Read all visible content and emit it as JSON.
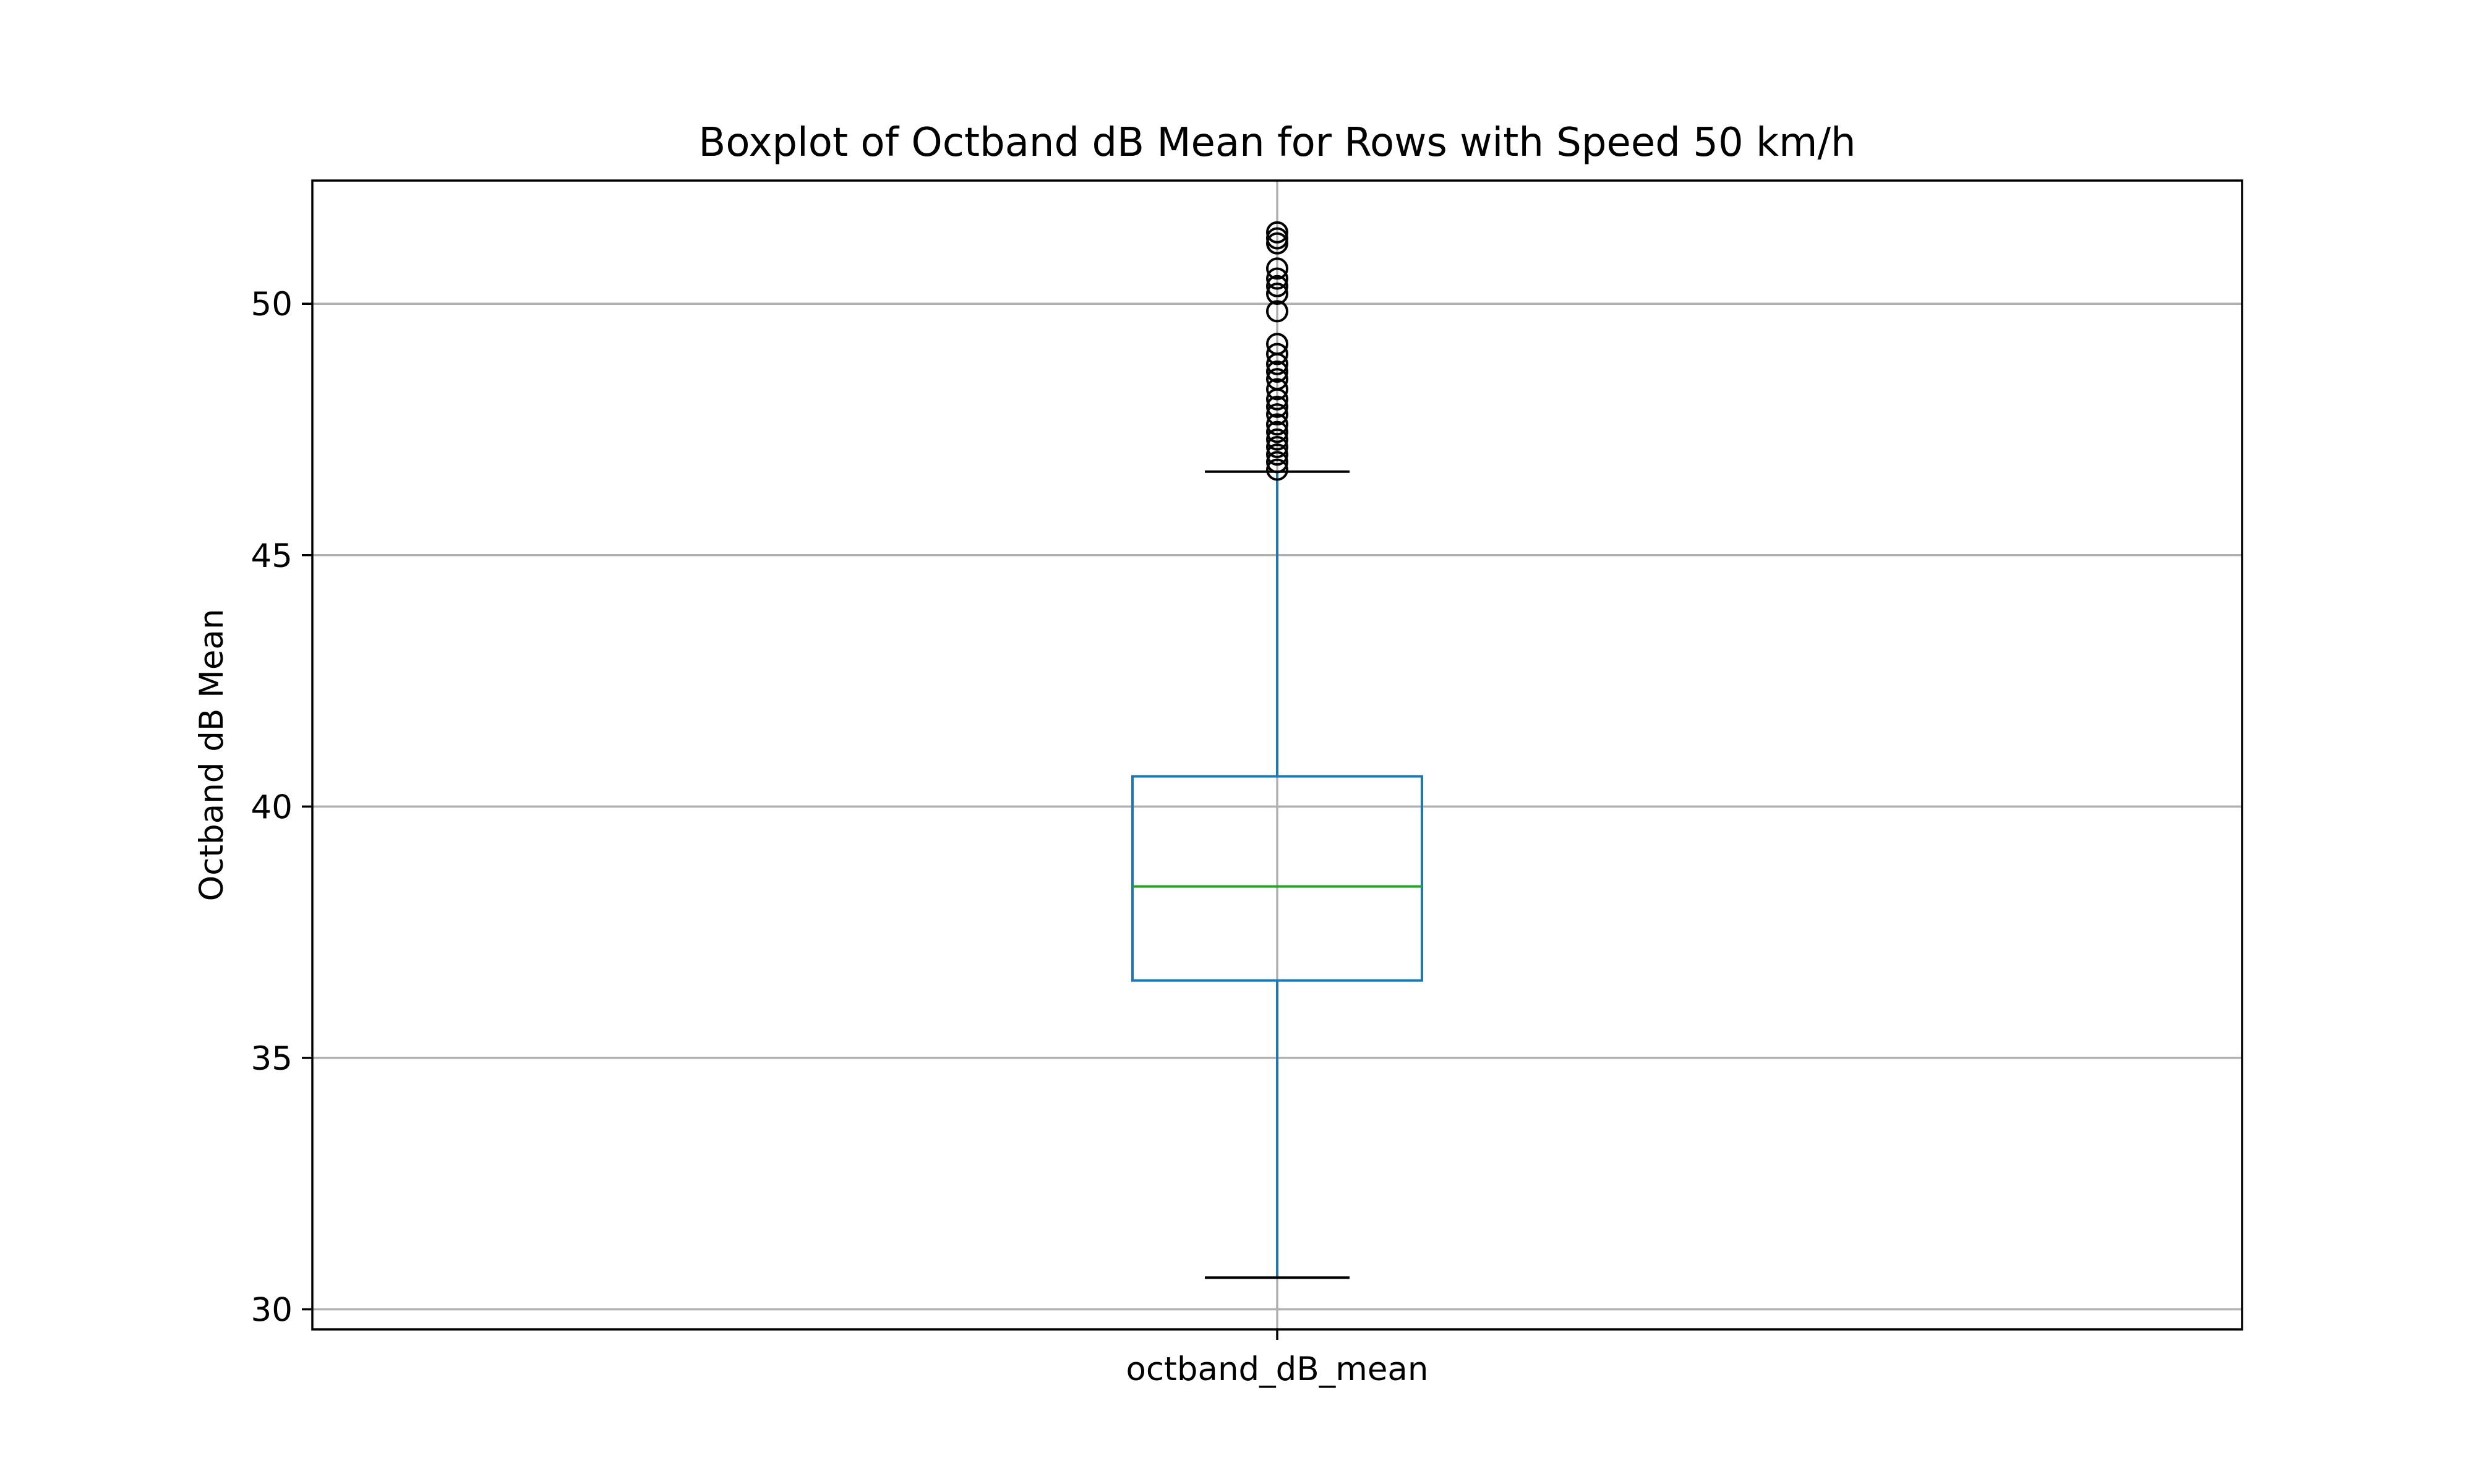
{
  "chart_data": {
    "type": "box",
    "title": "Boxplot of Octband dB Mean for Rows with Speed 50 km/h",
    "xlabel": "",
    "ylabel": "Octband dB Mean",
    "categories": [
      "octband_dB_mean"
    ],
    "ylim": [
      29.6,
      52.45
    ],
    "yticks": [
      30,
      35,
      40,
      45,
      50
    ],
    "grid": true,
    "boxes": [
      {
        "name": "octband_dB_mean",
        "whisker_low": 30.63,
        "q1": 36.54,
        "median": 38.41,
        "q3": 40.6,
        "whisker_high": 46.66,
        "outliers": [
          46.7,
          46.85,
          47.0,
          47.15,
          47.3,
          47.45,
          47.6,
          47.8,
          47.95,
          48.1,
          48.3,
          48.5,
          48.65,
          48.8,
          49.0,
          49.2,
          49.85,
          50.2,
          50.35,
          50.5,
          50.7,
          51.2,
          51.3,
          51.42
        ]
      }
    ],
    "colors": {
      "box": "#1f77b4",
      "median": "#2ca02c",
      "caps": "#000000",
      "grid": "#b0b0b0",
      "outlier_edge": "#000000"
    }
  }
}
